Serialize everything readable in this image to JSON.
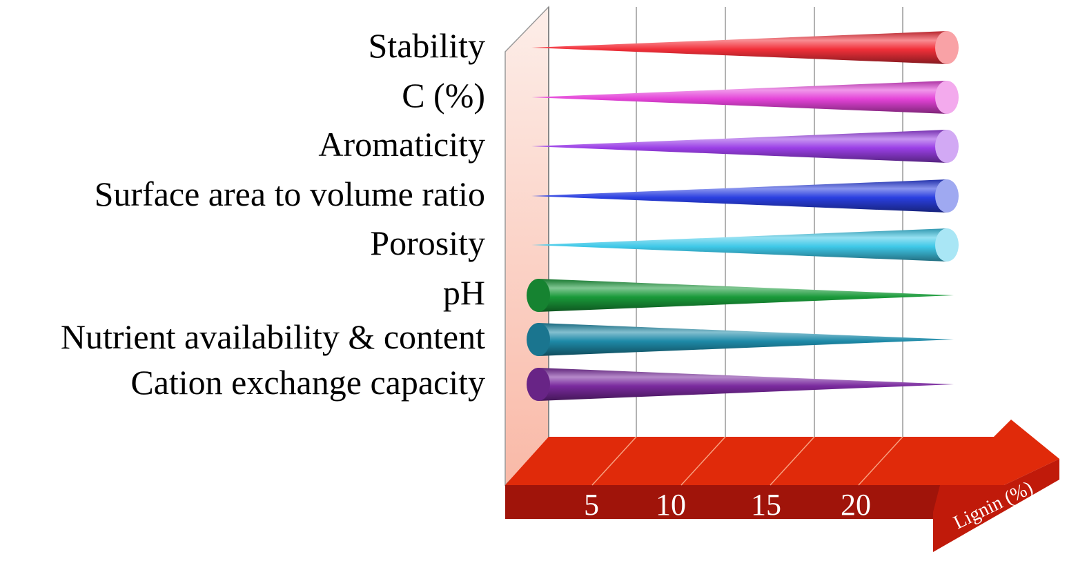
{
  "chart_data": {
    "type": "bar",
    "style": "3d-cone",
    "title": "",
    "xlabel": "Lignin (%)",
    "ylabel": "",
    "xlim": [
      0,
      25
    ],
    "x_ticks": [
      5,
      10,
      15,
      20
    ],
    "grid": true,
    "categories": [
      "Stability",
      "C (%)",
      "Aromaticity",
      "Surface area to volume ratio",
      "Porosity",
      "pH",
      "Nutrient availability & content",
      "Cation exchange capacity"
    ],
    "trend": [
      "increase",
      "increase",
      "increase",
      "increase",
      "increase",
      "decrease",
      "decrease",
      "decrease"
    ],
    "colors": [
      "#f2303a",
      "#e443d8",
      "#9a3fe6",
      "#2a3fe0",
      "#3fc8e8",
      "#1a9a3a",
      "#1e8aa8",
      "#7a2a9e"
    ]
  }
}
